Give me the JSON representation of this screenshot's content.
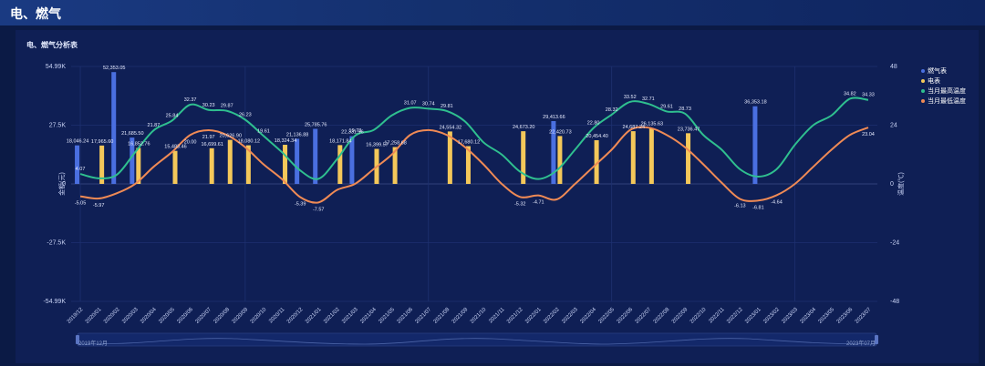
{
  "header": {
    "title": "电、燃气"
  },
  "chart_title": "电、燃气分析表",
  "slider": {
    "start_label": "2019年12月",
    "end_label": "2023年07月"
  },
  "colors": {
    "gas": "#4a6fe0",
    "electric": "#f4c85a",
    "high": "#2fbf8f",
    "low": "#ef8a55"
  },
  "chart_data": {
    "type": "bar",
    "categories": [
      "2019/12",
      "2020/01",
      "2020/02",
      "2020/03",
      "2020/04",
      "2020/05",
      "2020/06",
      "2020/07",
      "2020/08",
      "2020/09",
      "2020/10",
      "2020/11",
      "2020/12",
      "2021/01",
      "2021/02",
      "2021/03",
      "2021/04",
      "2021/05",
      "2021/06",
      "2021/07",
      "2021/08",
      "2021/09",
      "2021/10",
      "2021/11",
      "2021/12",
      "2022/01",
      "2022/02",
      "2022/03",
      "2022/04",
      "2022/05",
      "2022/06",
      "2022/07",
      "2022/08",
      "2022/09",
      "2022/10",
      "2022/11",
      "2022/12",
      "2023/01",
      "2023/02",
      "2023/03",
      "2023/04",
      "2023/05",
      "2023/06",
      "2023/07"
    ],
    "y_left": {
      "label": "金额(元)",
      "ticks": [
        "54.99K",
        "27.5K",
        "0",
        "-27.5K",
        "-54.99K"
      ],
      "range": [
        -54990,
        54990
      ]
    },
    "y_right": {
      "label": "温度(℃)",
      "ticks": [
        "48",
        "24",
        "0",
        "-24",
        "-48"
      ],
      "range": [
        -48,
        48
      ]
    },
    "legend": [
      "燃气表",
      "电表",
      "当月最高温度",
      "当月最低温度"
    ],
    "series": [
      {
        "name": "燃气表",
        "kind": "bar",
        "values": [
          18046.24,
          0,
          52353.05,
          21685.5,
          0,
          0,
          0,
          0,
          0,
          0,
          0,
          0,
          21136.88,
          25785.76,
          0,
          22331.96,
          0,
          0,
          0,
          0,
          0,
          0,
          0,
          0,
          0,
          0,
          29413.66,
          0,
          0,
          0,
          0,
          0,
          0,
          0,
          0,
          0,
          0,
          36353.18,
          0,
          0,
          0,
          0,
          0,
          0
        ],
        "labels": [
          "18,046.24",
          "",
          "52,353.05",
          "21,685.50",
          "",
          "",
          "",
          "",
          "",
          "",
          "",
          "",
          "21,136.88",
          "25,785.76",
          "",
          "22,331.96",
          "",
          "",
          "",
          "",
          "",
          "",
          "",
          "",
          "",
          "",
          "29,413.66",
          "",
          "",
          "",
          "",
          "",
          "",
          "",
          "",
          "",
          "",
          "36,353.18",
          "",
          "",
          "",
          "",
          "",
          ""
        ]
      },
      {
        "name": "电表",
        "kind": "bar",
        "values": [
          0,
          17965.6,
          0,
          16852.76,
          0,
          15483.46,
          0,
          16699.61,
          20626.9,
          18080.12,
          0,
          18324.34,
          0,
          0,
          18171.84,
          0,
          16399.57,
          17258.68,
          0,
          0,
          24554.32,
          17680.12,
          0,
          0,
          24673.2,
          0,
          22420.73,
          0,
          20454.4,
          0,
          24687.24,
          26135.63,
          0,
          23736.47,
          0,
          0,
          0,
          0,
          0,
          0,
          0,
          0,
          0,
          0
        ],
        "labels": [
          "",
          "17,965.60",
          "",
          "16,852.76",
          "",
          "15,483.46",
          "",
          "16,699.61",
          "20,626.90",
          "18,080.12",
          "",
          "18,324.34",
          "",
          "",
          "18,171.84",
          "",
          "16,399.57",
          "17,258.68",
          "",
          "",
          "24,554.32",
          "17,680.12",
          "",
          "",
          "24,673.20",
          "",
          "22,420.73",
          "",
          "20,454.40",
          "",
          "24,687.24",
          "26,135.63",
          "",
          "23,736.47",
          "",
          "",
          "",
          "",
          "",
          "",
          "",
          "",
          "",
          ""
        ]
      },
      {
        "name": "当月最高温度",
        "kind": "line",
        "values": [
          4.07,
          2.3,
          3.8,
          13.0,
          21.87,
          25.84,
          32.37,
          30.23,
          29.87,
          26.23,
          19.61,
          13.0,
          5.5,
          2.1,
          10.0,
          19.73,
          22.0,
          28.0,
          31.07,
          30.74,
          29.81,
          25.5,
          17.0,
          12.0,
          5.0,
          2.0,
          5.5,
          14.0,
          22.8,
          28.32,
          33.52,
          32.71,
          29.61,
          28.73,
          20.0,
          14.0,
          6.0,
          3.0,
          6.0,
          16.0,
          24.0,
          28.0,
          34.82,
          34.33
        ],
        "labels": [
          "4.07",
          "",
          "",
          "",
          "21.87",
          "25.84",
          "32.37",
          "30.23",
          "29.87",
          "26.23",
          "19.61",
          "",
          "",
          "",
          "",
          "19.73",
          "",
          "",
          "31.07",
          "30.74",
          "29.81",
          "",
          "",
          "",
          "",
          "",
          "",
          "",
          "22.80",
          "28.32",
          "33.52",
          "32.71",
          "29.61",
          "28.73",
          "",
          "",
          "",
          "",
          "",
          "",
          "",
          "",
          "34.82",
          "34.33"
        ]
      },
      {
        "name": "当月最低温度",
        "kind": "line",
        "values": [
          -5.05,
          -5.97,
          -3.8,
          0.03,
          7.0,
          13.0,
          20.0,
          21.97,
          20.0,
          15.0,
          8.0,
          2.0,
          -5.39,
          -7.57,
          -2.5,
          0.06,
          6.0,
          12.0,
          20.0,
          22.0,
          20.0,
          15.0,
          8.0,
          0.02,
          -5.32,
          -4.71,
          -6.33,
          0.0,
          7.0,
          14.0,
          22.0,
          23.0,
          20.0,
          15.0,
          8.0,
          0.5,
          -6.13,
          -6.81,
          -4.64,
          0.0,
          7.0,
          14.0,
          20.0,
          23.04
        ],
        "labels": [
          "-5.05",
          "-5.97",
          "",
          "",
          "",
          "",
          "20.00",
          "21.97",
          "",
          "",
          "",
          "",
          "-5.39",
          "-7.57",
          "",
          "",
          "",
          "",
          "",
          "",
          "",
          "",
          "",
          "",
          "-5.32",
          "-4.71",
          "",
          "",
          "",
          "",
          "",
          "",
          "",
          "",
          "",
          "",
          "-6.13",
          "-6.81",
          "-4.64",
          "",
          "",
          "",
          "",
          "23.04"
        ]
      }
    ]
  }
}
